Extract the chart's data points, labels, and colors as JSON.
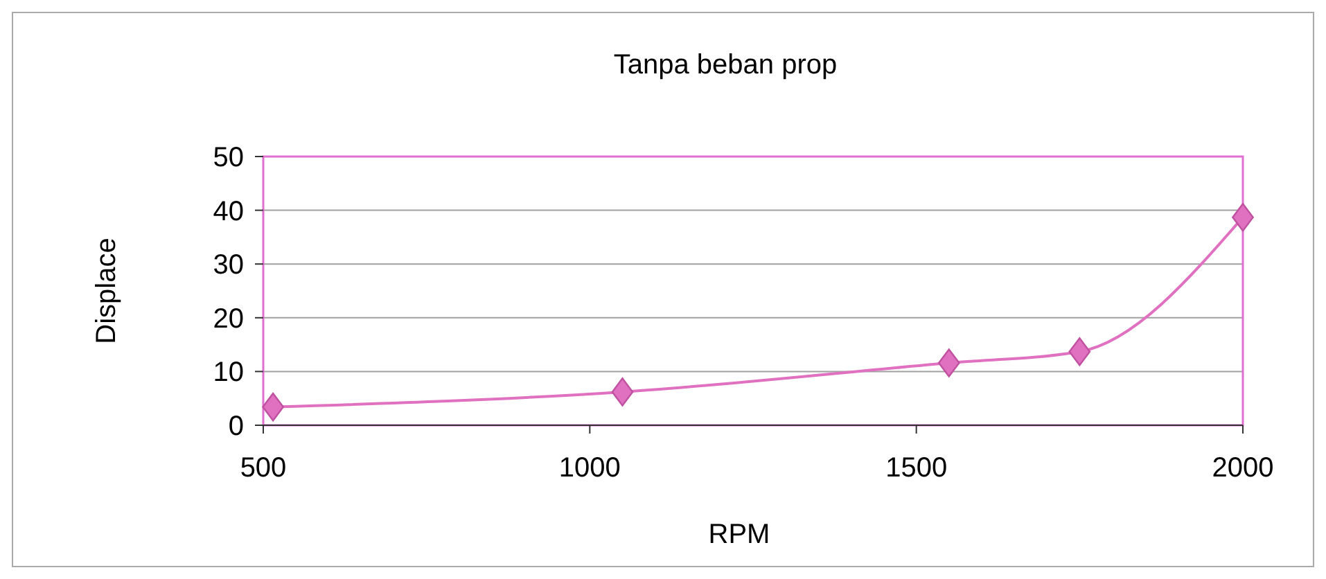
{
  "chart_data": {
    "type": "line",
    "title": "Tanpa beban prop",
    "xlabel": "RPM",
    "ylabel": "Displace",
    "x": [
      515,
      1050,
      1550,
      1750,
      2000
    ],
    "series": [
      {
        "color": "#e070c0",
        "values": [
          3.4,
          6.2,
          11.6,
          13.7,
          38.7
        ]
      }
    ],
    "xlim": [
      500,
      2000
    ],
    "xticks": [
      500,
      1000,
      1500,
      2000
    ],
    "ylim": [
      0,
      50
    ],
    "yticks": [
      0,
      10,
      20,
      30,
      40,
      50
    ],
    "grid": "y",
    "marker": "diamond"
  }
}
